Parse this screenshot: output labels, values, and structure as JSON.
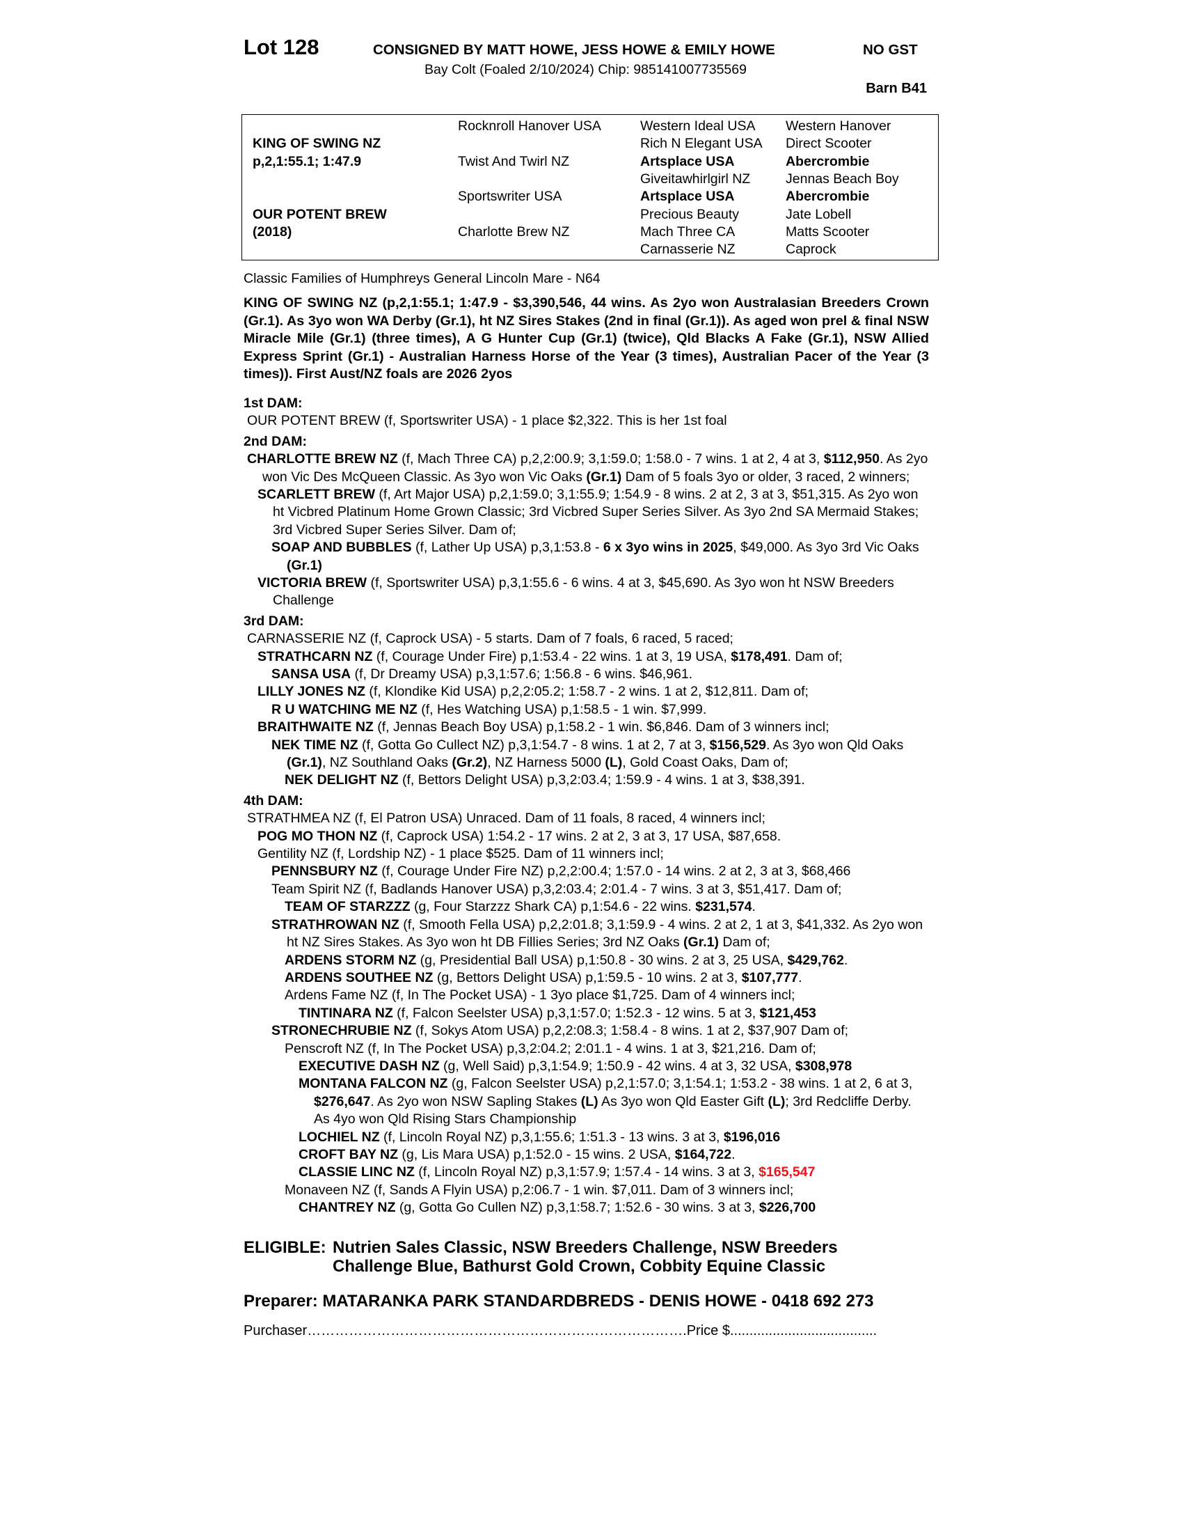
{
  "header": {
    "lot": "Lot 128",
    "consignor": "CONSIGNED BY MATT HOWE, JESS HOWE & EMILY HOWE",
    "gst": "NO GST",
    "description": "Bay Colt (Foaled 2/10/2024) Chip: 985141007735569",
    "barn": "Barn B41"
  },
  "pedigree": {
    "rows": [
      [
        null,
        "Rocknroll Hanover USA",
        "Western Ideal USA",
        "Western Hanover"
      ],
      [
        {
          "bold": "KING OF SWING NZ"
        },
        null,
        "Rich N Elegant USA",
        "Direct Scooter"
      ],
      [
        {
          "bold": "p,2,1:55.1; 1:47.9"
        },
        "Twist And Twirl NZ",
        {
          "bold": "Artsplace USA"
        },
        {
          "bold": "Abercrombie"
        }
      ],
      [
        null,
        null,
        "Giveitawhirlgirl NZ",
        "Jennas Beach Boy"
      ],
      [
        null,
        "Sportswriter USA",
        {
          "bold": "Artsplace USA"
        },
        {
          "bold": "Abercrombie"
        }
      ],
      [
        {
          "bold": "OUR POTENT BREW"
        },
        null,
        "Precious Beauty",
        "Jate Lobell"
      ],
      [
        {
          "bold": "(2018)"
        },
        "Charlotte Brew NZ",
        "Mach Three CA",
        "Matts Scooter"
      ],
      [
        null,
        null,
        "Carnasserie NZ",
        "Caprock"
      ]
    ]
  },
  "family": "Classic Families of Humphreys General Lincoln Mare - N64",
  "sire_summary": "KING OF SWING NZ (p,2,1:55.1; 1:47.9 - $3,390,546, 44 wins. As 2yo won Australasian Breeders Crown (Gr.1). As 3yo won WA Derby (Gr.1), ht NZ Sires Stakes (2nd in final (Gr.1)). As aged won prel & final NSW Miracle Mile (Gr.1) (three times), A G Hunter Cup (Gr.1) (twice), Qld Blacks A Fake (Gr.1), NSW Allied Express Sprint (Gr.1) - Australian Harness Horse of the Year (3 times), Australian Pacer of the Year (3 times)). First Aust/NZ foals are 2026 2yos",
  "dams": [
    {
      "heading": "1st DAM:",
      "entries": [
        {
          "runs": [
            "OUR POTENT BREW (f, Sportswriter USA) - 1 place $2,322. This is her 1st foal"
          ]
        }
      ]
    },
    {
      "heading": "2nd DAM:",
      "entries": [
        {
          "runs": [
            {
              "bold": "CHARLOTTE BREW NZ"
            },
            " (f, Mach Three CA) p,2,2:00.9; 3,1:59.0; 1:58.0 - 7 wins. 1 at 2, 4 at 3, ",
            {
              "bold": "$112,950"
            },
            ". As 2yo won Vic Des McQueen Classic. As 3yo won Vic Oaks ",
            {
              "bold": "(Gr.1)"
            },
            " Dam of 5 foals 3yo or older, 3 raced, 2 winners;"
          ],
          "progeny": [
            {
              "runs": [
                {
                  "bold": "SCARLETT BREW"
                },
                " (f, Art Major USA) p,2,1:59.0; 3,1:55.9; 1:54.9 - 8 wins. 2 at 2, 3 at 3, $51,315. As 2yo won ht Vicbred Platinum Home Grown Classic; 3rd Vicbred Super Series Silver. As 3yo 2nd SA Mermaid Stakes; 3rd Vicbred Super Series Silver. Dam of;"
              ],
              "progeny": [
                {
                  "runs": [
                    {
                      "bold": "SOAP AND BUBBLES"
                    },
                    " (f, Lather Up USA) p,3,1:53.8 - ",
                    {
                      "bold": "6 x 3yo wins in 2025"
                    },
                    ", $49,000. As 3yo 3rd Vic Oaks ",
                    {
                      "bold": "(Gr.1)"
                    }
                  ]
                }
              ]
            },
            {
              "runs": [
                {
                  "bold": "VICTORIA BREW"
                },
                " (f, Sportswriter USA) p,3,1:55.6 - 6 wins. 4 at 3, $45,690. As 3yo won ht NSW Breeders Challenge"
              ]
            }
          ]
        }
      ]
    },
    {
      "heading": "3rd DAM:",
      "entries": [
        {
          "runs": [
            "CARNASSERIE NZ (f, Caprock USA) - 5 starts. Dam of 7 foals, 6 raced, 5 raced;"
          ],
          "progeny": [
            {
              "runs": [
                {
                  "bold": "STRATHCARN NZ"
                },
                " (f, Courage Under Fire) p,1:53.4 - 22 wins. 1 at 3, 19 USA, ",
                {
                  "bold": "$178,491"
                },
                ". Dam of;"
              ],
              "progeny": [
                {
                  "runs": [
                    {
                      "bold": "SANSA USA"
                    },
                    " (f, Dr Dreamy USA) p,3,1:57.6; 1:56.8 - 6 wins. $46,961."
                  ]
                }
              ]
            },
            {
              "runs": [
                {
                  "bold": "LILLY JONES NZ"
                },
                " (f, Klondike Kid USA) p,2,2:05.2; 1:58.7 - 2 wins. 1 at 2, $12,811. Dam of;"
              ],
              "progeny": [
                {
                  "runs": [
                    {
                      "bold": "R U WATCHING ME NZ"
                    },
                    " (f, Hes Watching USA) p,1:58.5 - 1 win. $7,999."
                  ]
                }
              ]
            },
            {
              "runs": [
                {
                  "bold": "BRAITHWAITE NZ"
                },
                " (f, Jennas Beach Boy USA) p,1:58.2 - 1 win. $6,846. Dam of 3 winners incl;"
              ],
              "progeny": [
                {
                  "runs": [
                    {
                      "bold": "NEK TIME NZ"
                    },
                    " (f, Gotta Go Cullect NZ) p,3,1:54.7 - 8 wins. 1 at 2, 7 at 3, ",
                    {
                      "bold": "$156,529"
                    },
                    ". As 3yo won Qld Oaks ",
                    {
                      "bold": "(Gr.1)"
                    },
                    ", NZ Southland Oaks ",
                    {
                      "bold": "(Gr.2)"
                    },
                    ", NZ Harness 5000 ",
                    {
                      "bold": "(L)"
                    },
                    ", Gold Coast Oaks, Dam of;"
                  ],
                  "progeny": [
                    {
                      "runs": [
                        {
                          "bold": "NEK DELIGHT NZ"
                        },
                        " (f, Bettors Delight USA) p,3,2:03.4; 1:59.9 - 4 wins. 1 at 3, $38,391."
                      ]
                    }
                  ]
                }
              ]
            }
          ]
        }
      ]
    },
    {
      "heading": "4th DAM:",
      "entries": [
        {
          "runs": [
            "STRATHMEA NZ (f, El Patron USA) Unraced. Dam of 11 foals, 8 raced, 4 winners incl;"
          ],
          "progeny": [
            {
              "runs": [
                {
                  "bold": "POG MO THON NZ"
                },
                " (f, Caprock USA) 1:54.2 - 17 wins. 2 at 2, 3 at 3, 17 USA, $87,658."
              ]
            },
            {
              "runs": [
                "Gentility NZ (f, Lordship NZ) - 1 place $525. Dam of 11 winners incl;"
              ],
              "progeny": [
                {
                  "runs": [
                    {
                      "bold": "PENNSBURY NZ"
                    },
                    " (f, Courage Under Fire NZ) p,2,2:00.4; 1:57.0 - 14 wins. 2 at 2, 3 at 3, $68,466"
                  ]
                },
                {
                  "runs": [
                    "Team Spirit NZ (f, Badlands Hanover USA) p,3,2:03.4; 2:01.4 - 7 wins. 3 at 3, $51,417. Dam of;"
                  ],
                  "progeny": [
                    {
                      "runs": [
                        {
                          "bold": "TEAM OF STARZZZ"
                        },
                        " (g, Four Starzzz Shark CA) p,1:54.6 - 22 wins. ",
                        {
                          "bold": "$231,574"
                        },
                        "."
                      ]
                    }
                  ]
                },
                {
                  "runs": [
                    {
                      "bold": "STRATHROWAN NZ"
                    },
                    " (f, Smooth Fella USA) p,2,2:01.8; 3,1:59.9 - 4 wins. 2 at 2, 1 at 3, $41,332. As 2yo won ht NZ Sires Stakes. As 3yo won ht DB Fillies Series; 3rd NZ Oaks ",
                    {
                      "bold": "(Gr.1)"
                    },
                    " Dam of;"
                  ],
                  "progeny": [
                    {
                      "runs": [
                        {
                          "bold": "ARDENS STORM NZ"
                        },
                        " (g, Presidential Ball USA) p,1:50.8 - 30 wins. 2 at 3, 25 USA, ",
                        {
                          "bold": "$429,762"
                        },
                        "."
                      ]
                    },
                    {
                      "runs": [
                        {
                          "bold": "ARDENS SOUTHEE NZ"
                        },
                        " (g, Bettors Delight USA) p,1:59.5 - 10 wins. 2 at 3, ",
                        {
                          "bold": "$107,777"
                        },
                        "."
                      ]
                    },
                    {
                      "runs": [
                        "Ardens Fame NZ (f, In The Pocket USA) - 1 3yo place $1,725. Dam of 4 winners incl;"
                      ],
                      "progeny": [
                        {
                          "runs": [
                            {
                              "bold": "TINTINARA NZ"
                            },
                            " (f, Falcon Seelster USA) p,3,1:57.0; 1:52.3 - 12 wins. 5 at 3, ",
                            {
                              "bold": "$121,453"
                            }
                          ]
                        }
                      ]
                    }
                  ]
                },
                {
                  "runs": [
                    {
                      "bold": "STRONECHRUBIE NZ"
                    },
                    " (f, Sokys Atom USA) p,2,2:08.3; 1:58.4 - 8 wins. 1 at 2, $37,907 Dam of;"
                  ],
                  "progeny": [
                    {
                      "runs": [
                        "Penscroft NZ (f, In The Pocket USA) p,3,2:04.2; 2:01.1 - 4 wins. 1 at 3, $21,216. Dam of;"
                      ],
                      "progeny": [
                        {
                          "runs": [
                            {
                              "bold": "EXECUTIVE DASH NZ"
                            },
                            " (g, Well Said) p,3,1:54.9; 1:50.9 - 42 wins. 4 at 3, 32 USA, ",
                            {
                              "bold": "$308,978"
                            }
                          ]
                        },
                        {
                          "runs": [
                            {
                              "bold": "MONTANA FALCON NZ"
                            },
                            " (g, Falcon Seelster USA) p,2,1:57.0; 3,1:54.1; 1:53.2 - 38 wins. 1 at 2, 6 at 3, ",
                            {
                              "bold": "$276,647"
                            },
                            ". As 2yo won NSW Sapling Stakes ",
                            {
                              "bold": "(L)"
                            },
                            " As 3yo won Qld Easter Gift ",
                            {
                              "bold": "(L)"
                            },
                            "; 3rd Redcliffe Derby. As 4yo won Qld Rising Stars Championship"
                          ]
                        },
                        {
                          "runs": [
                            {
                              "bold": "LOCHIEL NZ"
                            },
                            " (f, Lincoln Royal NZ) p,3,1:55.6; 1:51.3 - 13 wins. 3 at 3, ",
                            {
                              "bold": "$196,016"
                            }
                          ]
                        },
                        {
                          "runs": [
                            {
                              "bold": "CROFT BAY NZ"
                            },
                            " (g, Lis Mara USA) p,1:52.0 - 15 wins. 2 USA, ",
                            {
                              "bold": "$164,722"
                            },
                            "."
                          ]
                        },
                        {
                          "runs": [
                            {
                              "bold": "CLASSIE LINC NZ"
                            },
                            " (f, Lincoln Royal NZ) p,3,1:57.9; 1:57.4 - 14 wins. 3 at 3, ",
                            {
                              "bold": "$165,547",
                              "color": "#e8161b"
                            }
                          ]
                        }
                      ]
                    },
                    {
                      "runs": [
                        "Monaveen NZ (f, Sands A Flyin USA) p,2:06.7 - 1 win. $7,011. Dam of 3 winners incl;"
                      ],
                      "progeny": [
                        {
                          "runs": [
                            {
                              "bold": "CHANTREY NZ"
                            },
                            " (g, Gotta Go Cullen NZ) p,3,1:58.7; 1:52.6 - 30 wins. 3 at 3, ",
                            {
                              "bold": "$226,700"
                            }
                          ]
                        }
                      ]
                    }
                  ]
                }
              ]
            }
          ]
        }
      ]
    }
  ],
  "eligible": {
    "label": "ELIGIBLE:",
    "text": "Nutrien Sales Classic, NSW Breeders Challenge, NSW Breeders Challenge Blue, Bathurst Gold Crown, Cobbity Equine Classic"
  },
  "preparer": "Preparer: MATARANKA PARK STANDARDBREDS - DENIS HOWE - 0418 692 273",
  "purchaser": "Purchaser……………………………………………………………………….Price $......................................"
}
